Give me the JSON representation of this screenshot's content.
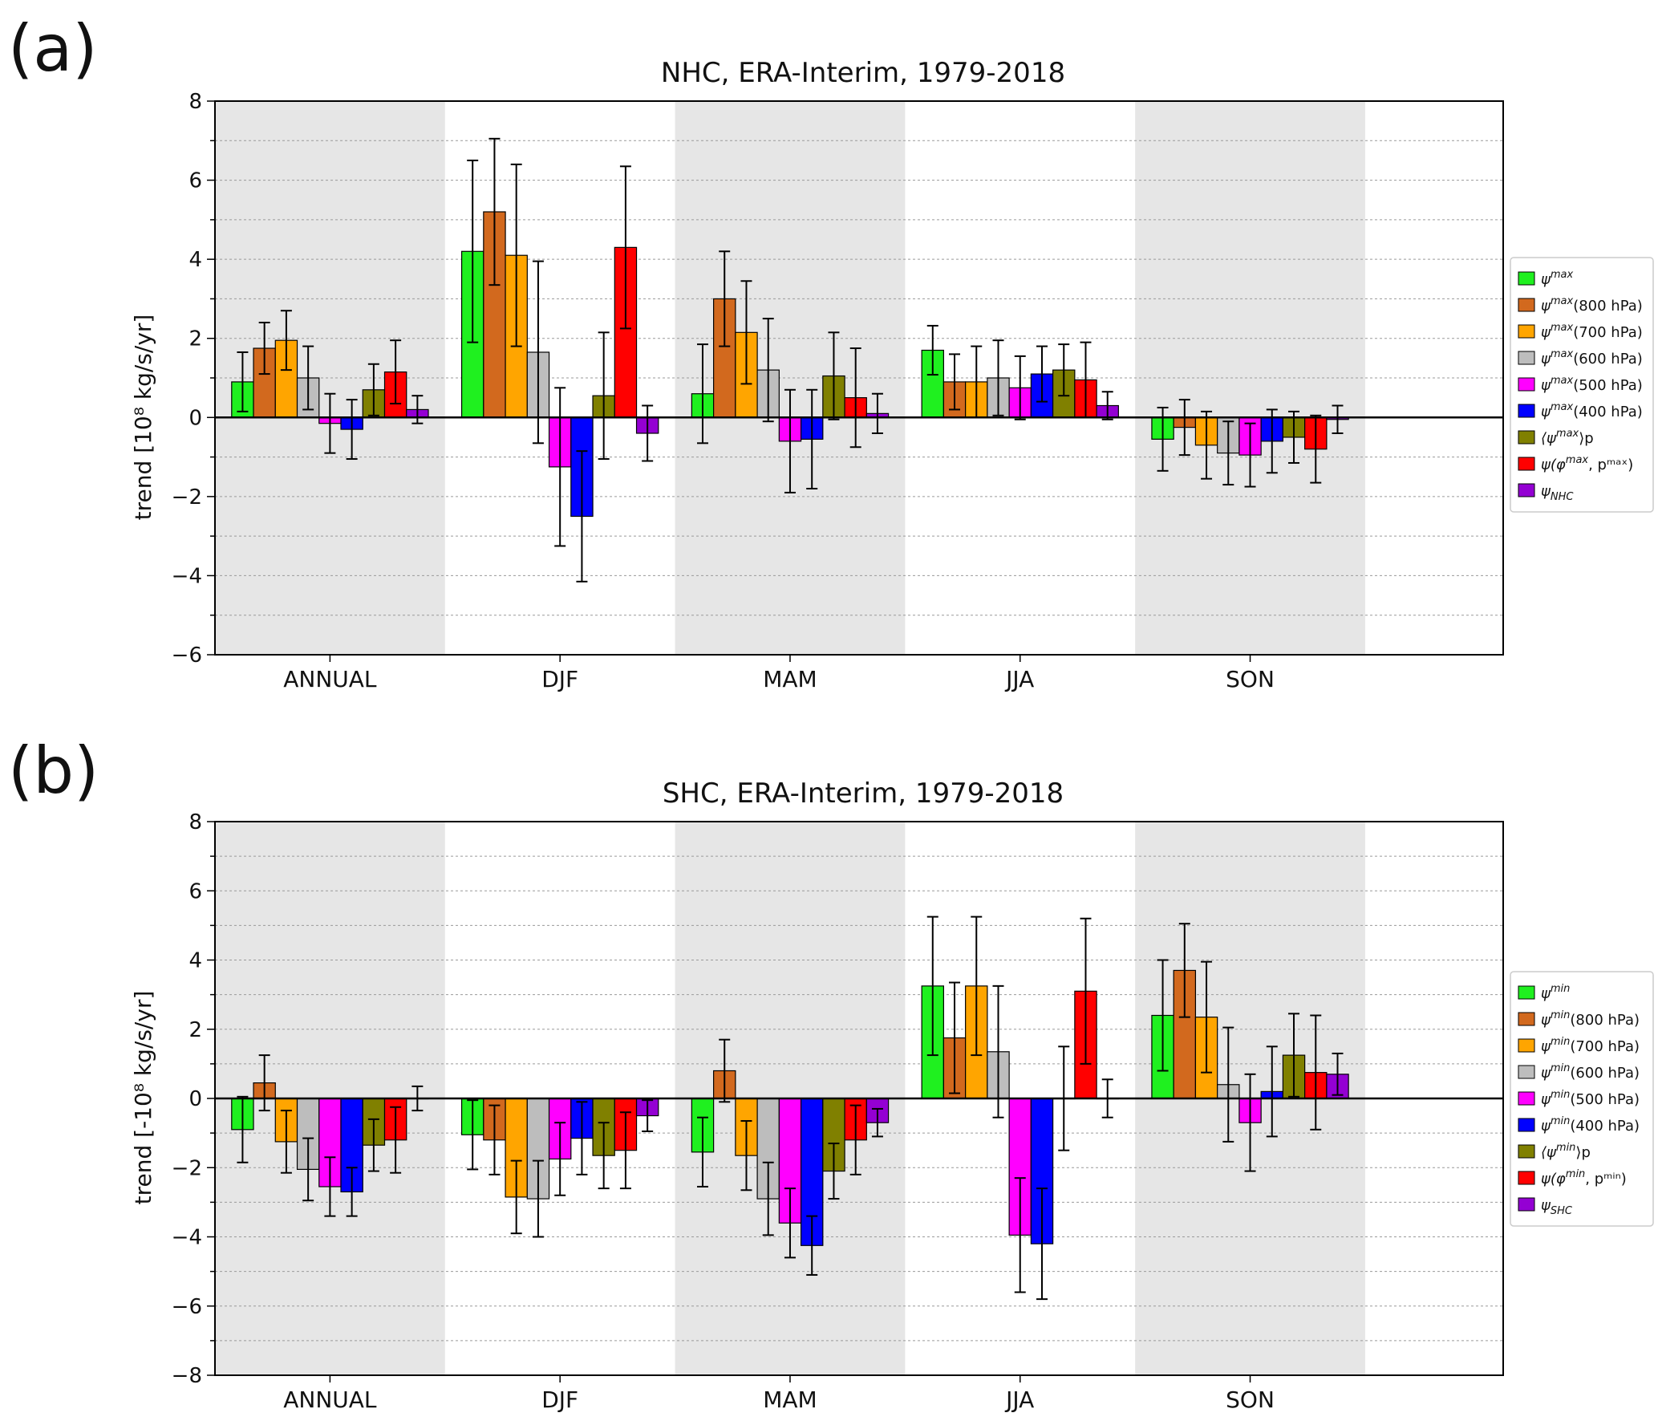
{
  "colors": {
    "band": "#e6e6e6",
    "series": [
      "#1ff01f",
      "#d2691e",
      "#ffa500",
      "#bdbdbd",
      "#ff00ff",
      "#0000ff",
      "#808000",
      "#ff0000",
      "#9400d3"
    ]
  },
  "chart_data": [
    {
      "type": "bar",
      "panel_label": "(a)",
      "title": "NHC, ERA-Interim, 1979-2018",
      "ylabel": "trend [10⁸ kg/s/yr]",
      "xlabel": "",
      "ylim": [
        -6,
        8
      ],
      "yticks": [
        "−6",
        "−4",
        "−2",
        "0",
        "2",
        "4",
        "6",
        "8"
      ],
      "grid": "horizontal dotted",
      "legend_position": "right",
      "categories": [
        "ANNUAL",
        "DJF",
        "MAM",
        "JJA",
        "SON"
      ],
      "series": [
        {
          "name": "ψ^max",
          "legend": {
            "base": "ψ",
            "sup": "max",
            "rest": ""
          },
          "values": [
            0.9,
            4.2,
            0.6,
            1.7,
            -0.55
          ],
          "err": [
            0.75,
            2.3,
            1.25,
            0.62,
            0.8
          ]
        },
        {
          "name": "ψ^max(800 hPa)",
          "legend": {
            "base": "ψ",
            "sup": "max",
            "rest": "(800 hPa)"
          },
          "values": [
            1.75,
            5.2,
            3.0,
            0.9,
            -0.25
          ],
          "err": [
            0.65,
            1.85,
            1.2,
            0.7,
            0.7
          ]
        },
        {
          "name": "ψ^max(700 hPa)",
          "legend": {
            "base": "ψ",
            "sup": "max",
            "rest": "(700 hPa)"
          },
          "values": [
            1.95,
            4.1,
            2.15,
            0.9,
            -0.7
          ],
          "err": [
            0.75,
            2.3,
            1.3,
            0.9,
            0.85
          ]
        },
        {
          "name": "ψ^max(600 hPa)",
          "legend": {
            "base": "ψ",
            "sup": "max",
            "rest": "(600 hPa)"
          },
          "values": [
            1.0,
            1.65,
            1.2,
            1.0,
            -0.9
          ],
          "err": [
            0.8,
            2.3,
            1.3,
            0.95,
            0.8
          ]
        },
        {
          "name": "ψ^max(500 hPa)",
          "legend": {
            "base": "ψ",
            "sup": "max",
            "rest": "(500 hPa)"
          },
          "values": [
            -0.15,
            -1.25,
            -0.6,
            0.75,
            -0.95
          ],
          "err": [
            0.75,
            2.0,
            1.3,
            0.8,
            0.8
          ]
        },
        {
          "name": "ψ^max(400 hPa)",
          "legend": {
            "base": "ψ",
            "sup": "max",
            "rest": "(400 hPa)"
          },
          "values": [
            -0.3,
            -2.5,
            -0.55,
            1.1,
            -0.6
          ],
          "err": [
            0.75,
            1.65,
            1.25,
            0.7,
            0.8
          ]
        },
        {
          "name": "⟨ψ^max⟩p",
          "legend": {
            "base": "⟨ψ",
            "sup": "max",
            "rest": "⟩p"
          },
          "values": [
            0.7,
            0.55,
            1.05,
            1.2,
            -0.5
          ],
          "err": [
            0.65,
            1.6,
            1.1,
            0.65,
            0.65
          ]
        },
        {
          "name": "ψ(φ^max, p^max)",
          "legend": {
            "base": "ψ(φ",
            "sup": "max",
            "rest": ", pᵐᵃˣ)"
          },
          "values": [
            1.15,
            4.3,
            0.5,
            0.95,
            -0.8
          ],
          "err": [
            0.8,
            2.05,
            1.25,
            0.95,
            0.85
          ]
        },
        {
          "name": "ψNHC",
          "legend": {
            "base": "ψ",
            "sup": "",
            "rest": "NHC"
          },
          "values": [
            0.2,
            -0.4,
            0.1,
            0.3,
            -0.05
          ],
          "err": [
            0.35,
            0.7,
            0.5,
            0.35,
            0.35
          ]
        }
      ]
    },
    {
      "type": "bar",
      "panel_label": "(b)",
      "title": "SHC, ERA-Interim, 1979-2018",
      "ylabel": "trend [-10⁸ kg/s/yr]",
      "xlabel": "",
      "ylim": [
        -8,
        8
      ],
      "yticks": [
        "−8",
        "−6",
        "−4",
        "−2",
        "0",
        "2",
        "4",
        "6",
        "8"
      ],
      "grid": "horizontal dotted",
      "legend_position": "right",
      "categories": [
        "ANNUAL",
        "DJF",
        "MAM",
        "JJA",
        "SON"
      ],
      "series": [
        {
          "name": "ψ^min",
          "legend": {
            "base": "ψ",
            "sup": "min",
            "rest": ""
          },
          "values": [
            -0.9,
            -1.05,
            -1.55,
            3.25,
            2.4
          ],
          "err": [
            0.95,
            1.0,
            1.0,
            2.0,
            1.6
          ]
        },
        {
          "name": "ψ^min(800 hPa)",
          "legend": {
            "base": "ψ",
            "sup": "min",
            "rest": "(800 hPa)"
          },
          "values": [
            0.45,
            -1.2,
            0.8,
            1.75,
            3.7
          ],
          "err": [
            0.8,
            1.0,
            0.9,
            1.6,
            1.35
          ]
        },
        {
          "name": "ψ^min(700 hPa)",
          "legend": {
            "base": "ψ",
            "sup": "min",
            "rest": "(700 hPa)"
          },
          "values": [
            -1.25,
            -2.85,
            -1.65,
            3.25,
            2.35
          ],
          "err": [
            0.9,
            1.05,
            1.0,
            2.0,
            1.6
          ]
        },
        {
          "name": "ψ^min(600 hPa)",
          "legend": {
            "base": "ψ",
            "sup": "min",
            "rest": "(600 hPa)"
          },
          "values": [
            -2.05,
            -2.9,
            -2.9,
            1.35,
            0.4
          ],
          "err": [
            0.9,
            1.1,
            1.05,
            1.9,
            1.65
          ]
        },
        {
          "name": "ψ^min(500 hPa)",
          "legend": {
            "base": "ψ",
            "sup": "min",
            "rest": "(500 hPa)"
          },
          "values": [
            -2.55,
            -1.75,
            -3.6,
            -3.95,
            -0.7
          ],
          "err": [
            0.85,
            1.05,
            1.0,
            1.65,
            1.4
          ]
        },
        {
          "name": "ψ^min(400 hPa)",
          "legend": {
            "base": "ψ",
            "sup": "min",
            "rest": "(400 hPa)"
          },
          "values": [
            -2.7,
            -1.15,
            -4.25,
            -4.2,
            0.2
          ],
          "err": [
            0.7,
            1.05,
            0.85,
            1.6,
            1.3
          ]
        },
        {
          "name": "⟨ψ^min⟩p",
          "legend": {
            "base": "⟨ψ",
            "sup": "min",
            "rest": "⟩p"
          },
          "values": [
            -1.35,
            -1.65,
            -2.1,
            0.0,
            1.25
          ],
          "err": [
            0.75,
            0.95,
            0.8,
            1.5,
            1.2
          ]
        },
        {
          "name": "ψ(φ^min, p^min)",
          "legend": {
            "base": "ψ(φ",
            "sup": "min",
            "rest": ", pᵐⁱⁿ)"
          },
          "values": [
            -1.2,
            -1.5,
            -1.2,
            3.1,
            0.75
          ],
          "err": [
            0.95,
            1.1,
            1.0,
            2.1,
            1.65
          ]
        },
        {
          "name": "ψSHC",
          "legend": {
            "base": "ψ",
            "sup": "",
            "rest": "SHC"
          },
          "values": [
            0.0,
            -0.5,
            -0.7,
            0.0,
            0.7
          ],
          "err": [
            0.35,
            0.45,
            0.4,
            0.55,
            0.6
          ]
        }
      ]
    }
  ]
}
